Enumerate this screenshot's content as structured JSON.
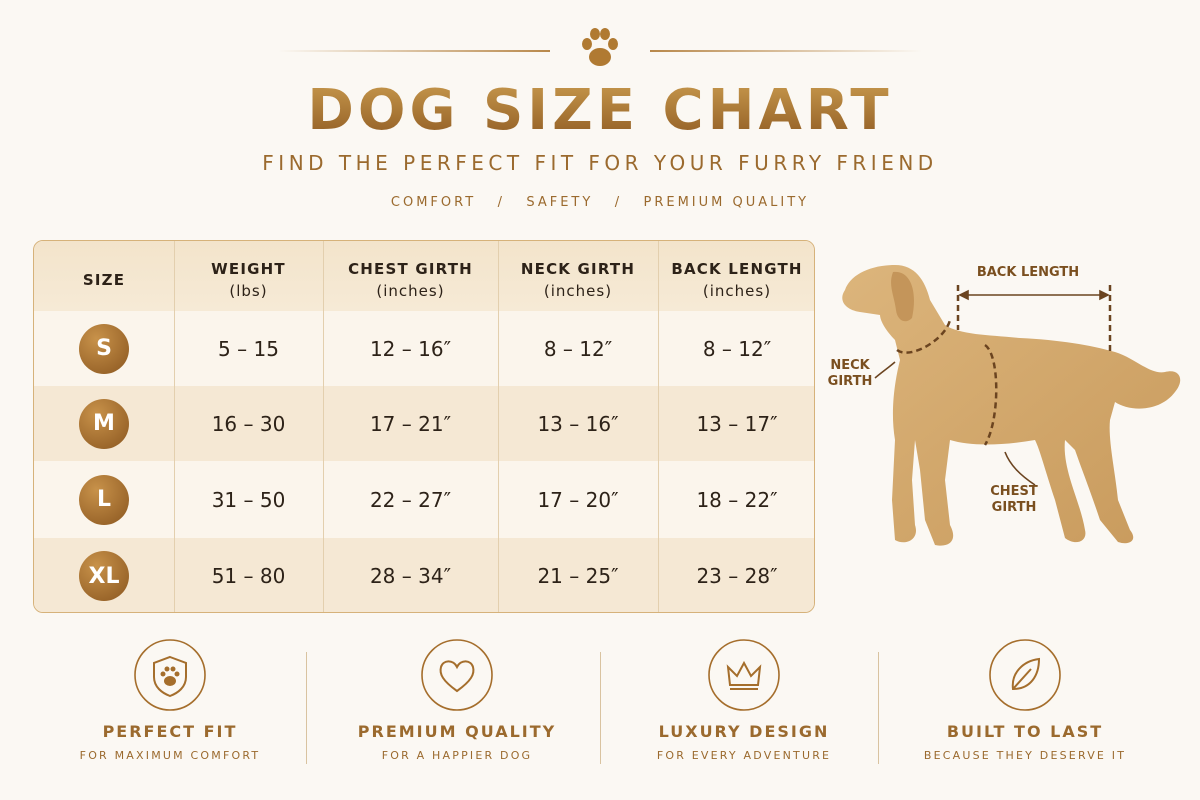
{
  "header": {
    "title": "DOG SIZE CHART",
    "subtitle": "FIND THE PERFECT FIT FOR YOUR FURRY FRIEND",
    "tagline": "COMFORT   /   SAFETY   /   PREMIUM QUALITY"
  },
  "table": {
    "columns": [
      {
        "title": "SIZE"
      },
      {
        "title": "WEIGHT",
        "unit": "(lbs)"
      },
      {
        "title": "CHEST GIRTH",
        "unit": "(inches)"
      },
      {
        "title": "NECK GIRTH",
        "unit": "(inches)"
      },
      {
        "title": "BACK LENGTH",
        "unit": "(inches)"
      }
    ],
    "rows": [
      [
        "S",
        "5 – 15",
        "12 – 16″",
        "8 – 12″",
        "8 – 12″"
      ],
      [
        "M",
        "16 – 30",
        "17 – 21″",
        "13 – 16″",
        "13 – 17″"
      ],
      [
        "L",
        "31 – 50",
        "22 – 27″",
        "17 – 20″",
        "18 – 22″"
      ],
      [
        "XL",
        "51 – 80",
        "28 – 34″",
        "21 – 25″",
        "23 – 28″"
      ]
    ]
  },
  "diagram": {
    "back_length": "BACK LENGTH",
    "neck_girth": [
      "NECK",
      "GIRTH"
    ],
    "chest_girth": [
      "CHEST",
      "GIRTH"
    ]
  },
  "features": [
    {
      "title": "PERFECT FIT",
      "subtitle": "FOR MAXIMUM COMFORT"
    },
    {
      "title": "PREMIUM QUALITY",
      "subtitle": "FOR A HAPPIER DOG"
    },
    {
      "title": "LUXURY DESIGN",
      "subtitle": "FOR EVERY ADVENTURE"
    },
    {
      "title": "BUILT TO LAST",
      "subtitle": "BECAUSE THEY DESERVE IT"
    }
  ]
}
